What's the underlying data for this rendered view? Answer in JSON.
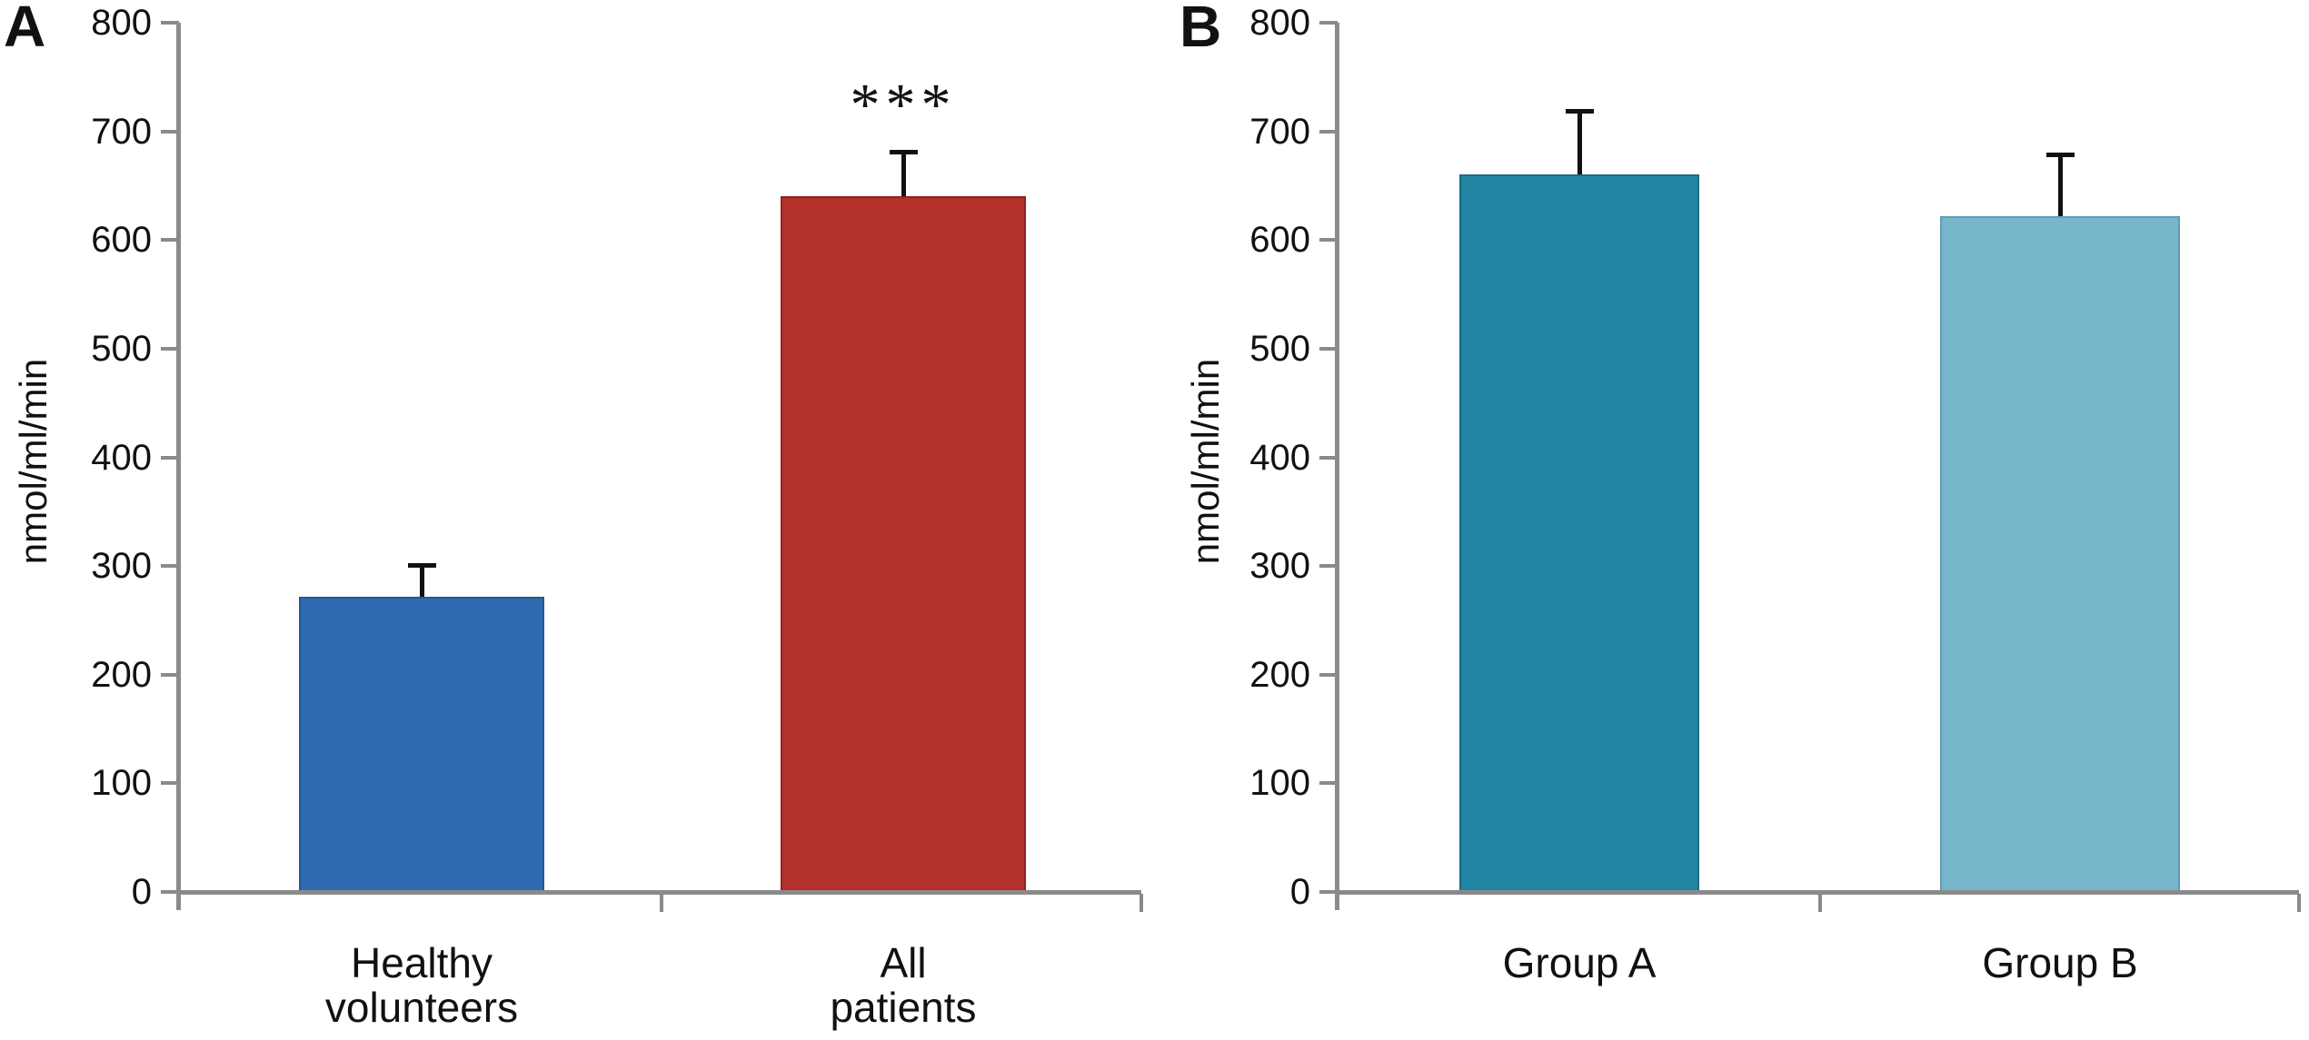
{
  "figure": {
    "background": "#ffffff"
  },
  "styles": {
    "axis_color": "#8a8a8a",
    "text_color": "#111111",
    "error_bar_color": "#111111"
  },
  "chart_data": [
    {
      "type": "bar",
      "panel_label": "A",
      "ylabel": "nmol/ml/min",
      "ylim": [
        0,
        800
      ],
      "ytick_interval": 100,
      "yticks": [
        0,
        100,
        200,
        300,
        400,
        500,
        600,
        700,
        800
      ],
      "categories": [
        "Healthy\nvolunteers",
        "All\npatients"
      ],
      "values": [
        272,
        640
      ],
      "errors_upper": [
        30,
        42
      ],
      "bar_colors": [
        "#2f6bb0",
        "#b3302c"
      ],
      "bar_edge_colors": [
        "#27598f",
        "#8f2420"
      ],
      "annotations": [
        {
          "text": "***",
          "category_index": 1
        }
      ],
      "grid": "off",
      "legend": "none"
    },
    {
      "type": "bar",
      "panel_label": "B",
      "ylabel": "nmol/ml/min",
      "ylim": [
        0,
        800
      ],
      "ytick_interval": 100,
      "yticks": [
        0,
        100,
        200,
        300,
        400,
        500,
        600,
        700,
        800
      ],
      "categories": [
        "Group A",
        "Group B"
      ],
      "values": [
        660,
        622
      ],
      "errors_upper": [
        60,
        58
      ],
      "bar_colors": [
        "#2284a3",
        "#78b6cc"
      ],
      "bar_edge_colors": [
        "#1a6b85",
        "#5f9cb3"
      ],
      "annotations": [],
      "grid": "off",
      "legend": "none"
    }
  ]
}
